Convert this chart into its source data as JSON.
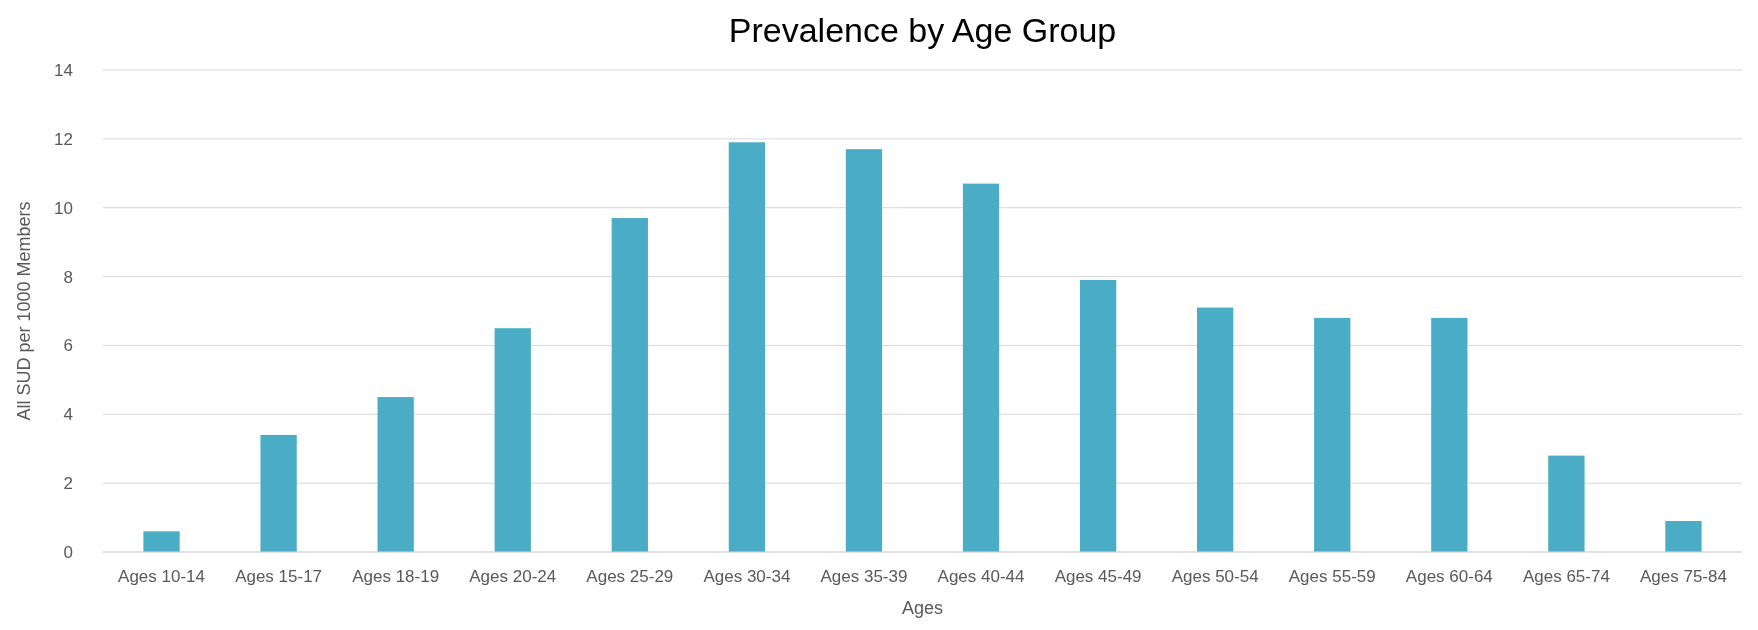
{
  "chart_data": {
    "type": "bar",
    "title": "Prevalence by Age Group",
    "xlabel": "Ages",
    "ylabel": "All SUD per 1000 Members",
    "categories": [
      "Ages 10-14",
      "Ages 15-17",
      "Ages 18-19",
      "Ages 20-24",
      "Ages 25-29",
      "Ages 30-34",
      "Ages 35-39",
      "Ages 40-44",
      "Ages 45-49",
      "Ages 50-54",
      "Ages 55-59",
      "Ages 60-64",
      "Ages 65-74",
      "Ages 75-84"
    ],
    "values": [
      0.6,
      3.4,
      4.5,
      6.5,
      9.7,
      11.9,
      11.7,
      10.7,
      7.9,
      7.1,
      6.8,
      6.8,
      2.8,
      0.9
    ],
    "color": "#4bacc6",
    "ylim": [
      0,
      14
    ],
    "yticks": [
      0,
      2,
      4,
      6,
      8,
      10,
      12,
      14
    ],
    "grid": "y"
  }
}
